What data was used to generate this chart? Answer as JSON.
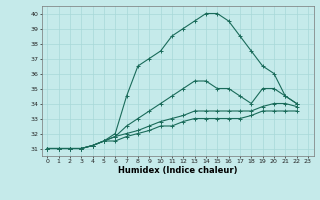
{
  "title": "",
  "xlabel": "Humidex (Indice chaleur)",
  "ylabel": "",
  "xlim": [
    -0.5,
    23.5
  ],
  "ylim": [
    30.5,
    40.5
  ],
  "yticks": [
    31,
    32,
    33,
    34,
    35,
    36,
    37,
    38,
    39,
    40
  ],
  "xticks": [
    0,
    1,
    2,
    3,
    4,
    5,
    6,
    7,
    8,
    9,
    10,
    11,
    12,
    13,
    14,
    15,
    16,
    17,
    18,
    19,
    20,
    21,
    22,
    23
  ],
  "bg_color": "#c5eaea",
  "grid_color": "#a8d8d8",
  "line_color": "#1a6b5a",
  "series": [
    [
      31.0,
      31.0,
      31.0,
      31.0,
      31.2,
      31.5,
      32.0,
      34.5,
      36.5,
      37.0,
      37.5,
      38.5,
      39.0,
      39.5,
      40.0,
      40.0,
      39.5,
      38.5,
      37.5,
      36.5,
      36.0,
      34.5,
      34.0
    ],
    [
      31.0,
      31.0,
      31.0,
      31.0,
      31.2,
      31.5,
      31.8,
      32.5,
      33.0,
      33.5,
      34.0,
      34.5,
      35.0,
      35.5,
      35.5,
      35.0,
      35.0,
      34.5,
      34.0,
      35.0,
      35.0,
      34.5,
      34.0
    ],
    [
      31.0,
      31.0,
      31.0,
      31.0,
      31.2,
      31.5,
      31.8,
      32.0,
      32.2,
      32.5,
      32.8,
      33.0,
      33.2,
      33.5,
      33.5,
      33.5,
      33.5,
      33.5,
      33.5,
      33.8,
      34.0,
      34.0,
      33.8
    ],
    [
      31.0,
      31.0,
      31.0,
      31.0,
      31.2,
      31.5,
      31.5,
      31.8,
      32.0,
      32.2,
      32.5,
      32.5,
      32.8,
      33.0,
      33.0,
      33.0,
      33.0,
      33.0,
      33.2,
      33.5,
      33.5,
      33.5,
      33.5
    ]
  ]
}
